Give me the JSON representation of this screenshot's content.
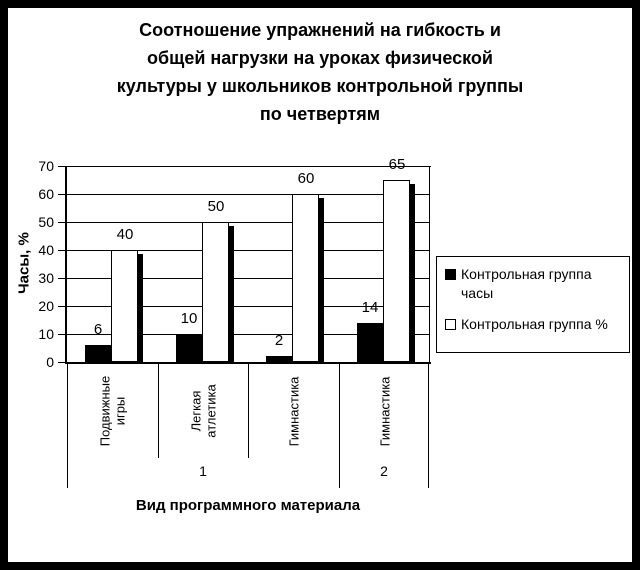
{
  "chart_data": {
    "type": "bar",
    "title": "Соотношение упражнений на гибкость и общей нагрузки на уроках физической культуры у школьников контрольной группы по четвертям",
    "title_lines": [
      "Соотношение упражнений на гибкость и",
      "общей нагрузки на уроках физической",
      "культуры у школьников контрольной группы",
      "по четвертям"
    ],
    "ylabel": "Часы, %",
    "xlabel": "Вид программного материала",
    "ylim": [
      0,
      70
    ],
    "ytick_step": 10,
    "yticks": [
      0,
      10,
      20,
      30,
      40,
      50,
      60,
      70
    ],
    "grid": true,
    "legend_position": "right",
    "categories": [
      "Подвижные игры",
      "Легкая атлетика",
      "Гимнастика",
      "Гимнастика"
    ],
    "groups": [
      {
        "label": "1",
        "span": 3
      },
      {
        "label": "2",
        "span": 1
      }
    ],
    "series": [
      {
        "name": "Контрольная группа часы",
        "color": "#000000",
        "values": [
          6,
          10,
          2,
          14
        ]
      },
      {
        "name": "Контрольная группа %",
        "color": "#ffffff",
        "values": [
          40,
          50,
          60,
          65
        ]
      }
    ]
  },
  "colors": {
    "foreground": "#000000",
    "background": "#ffffff"
  }
}
